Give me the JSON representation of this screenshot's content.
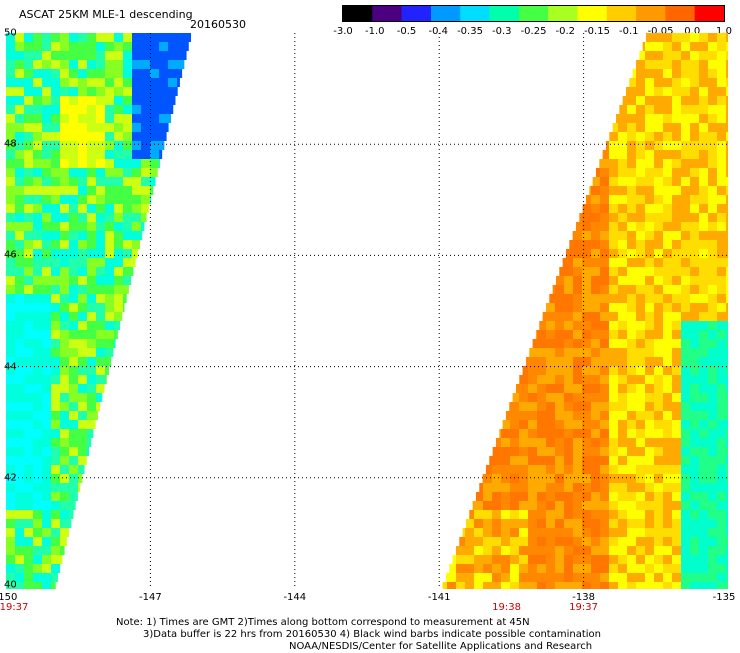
{
  "header": {
    "title": "ASCAT 25KM MLE-1 descending",
    "date": "20160530"
  },
  "colorbar": {
    "ticks": [
      "-3.0",
      "-1.0",
      "-0.5",
      "-0.4",
      "-0.35",
      "-0.3",
      "-0.25",
      "-0.2",
      "-0.15",
      "-0.1",
      "-0.05",
      "0.0",
      "1.0"
    ],
    "colors": [
      "#000000",
      "#4b0082",
      "#2222ff",
      "#0099ff",
      "#00ddff",
      "#00ffaa",
      "#44ff44",
      "#aaff22",
      "#ffff00",
      "#ffcc00",
      "#ff9900",
      "#ff6600",
      "#ff0000"
    ]
  },
  "axes": {
    "lat_labels": [
      "50",
      "48",
      "46",
      "44",
      "42",
      "40"
    ],
    "lat_values": [
      50,
      48,
      46,
      44,
      42,
      40
    ],
    "lon_labels": [
      "-150",
      "-147",
      "-144",
      "-141",
      "-138",
      "-135"
    ],
    "lon_values": [
      -150,
      -147,
      -144,
      -141,
      -138,
      -135
    ],
    "lon_range": [
      -150,
      -135
    ],
    "lat_range": [
      40,
      50
    ],
    "time_labels": [
      {
        "text": "19:37",
        "lon": -150
      },
      {
        "text": "19:38",
        "lon": -139.6
      },
      {
        "text": "19:37",
        "lon": -138
      }
    ]
  },
  "swaths": {
    "left": {
      "description_colors": [
        "#00ffcc",
        "#44ff44",
        "#aaff22",
        "#ffff00",
        "#0066ff"
      ],
      "dominant": "green-cyan"
    },
    "right": {
      "dominant": "orange-yellow"
    }
  },
  "notes": [
    "Note: 1) Times are GMT 2)Times along bottom correspond to measurement at 45N",
    "3)Data buffer is 22 hrs from 20160530 4) Black wind barbs indicate possible contamination",
    "NOAA/NESDIS/Center for Satellite Applications and Research"
  ]
}
